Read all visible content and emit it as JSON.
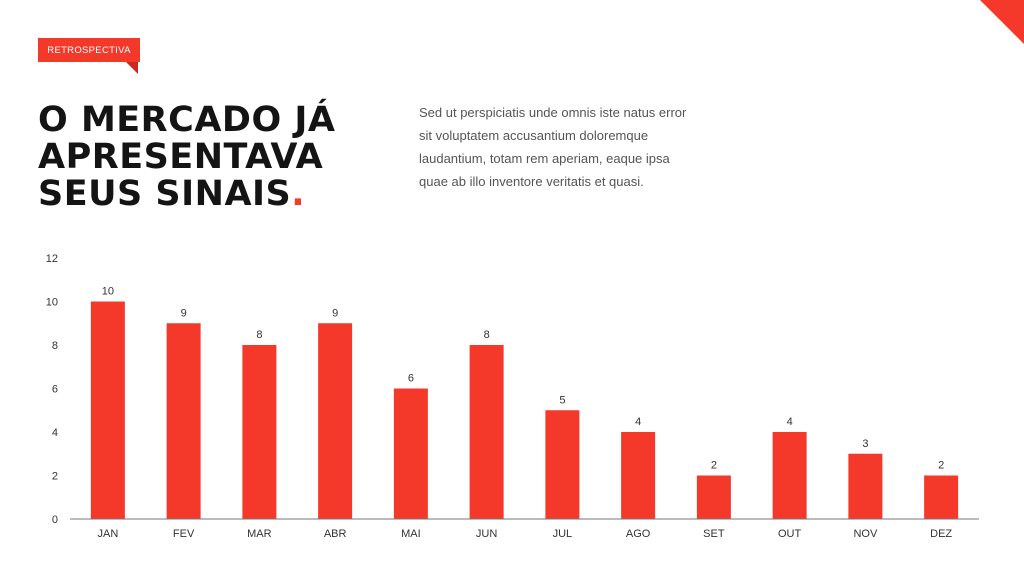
{
  "tag": "RETROSPECTIVA",
  "headline": {
    "lines": [
      "O MERCADO JÁ",
      "APRESENTAVA",
      "SEUS SINAIS"
    ],
    "dot": "."
  },
  "body_text": "Sed ut perspiciatis unde omnis iste natus error sit voluptatem accusantium doloremque laudantium, totam rem aperiam, eaque ipsa quae ab illo inventore veritatis et quasi.",
  "colors": {
    "accent": "#f4392b",
    "text": "#141414",
    "muted": "#555555"
  },
  "chart_data": {
    "type": "bar",
    "categories": [
      "JAN",
      "FEV",
      "MAR",
      "ABR",
      "MAI",
      "JUN",
      "JUL",
      "AGO",
      "SET",
      "OUT",
      "NOV",
      "DEZ"
    ],
    "values": [
      10,
      9,
      8,
      9,
      6,
      8,
      5,
      4,
      2,
      4,
      3,
      2
    ],
    "yticks": [
      0,
      2,
      4,
      6,
      8,
      10,
      12
    ],
    "ylim": [
      0,
      12
    ],
    "grid": false,
    "data_labels": true,
    "bar_color": "#f4392b"
  }
}
